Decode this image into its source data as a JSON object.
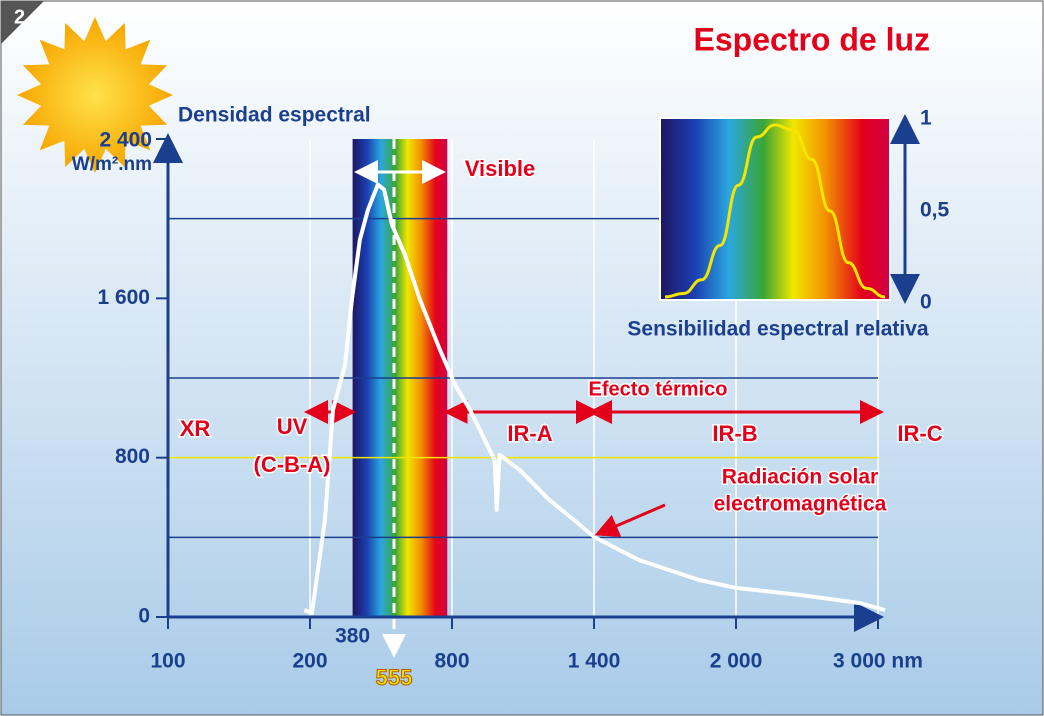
{
  "chart_data": {
    "type": "line",
    "title": "Espectro de luz",
    "badge": "2",
    "y_label": "Densidad espectral",
    "y_unit": "W/m².nm",
    "ylim": [
      0,
      2400
    ],
    "yticks": [
      0,
      800,
      {
        "value": 1600,
        "label": "1 600"
      },
      {
        "value": 2400,
        "label": "2 400"
      }
    ],
    "xticks": [
      100,
      200,
      800,
      {
        "value": 1400,
        "label": "1 400"
      },
      {
        "value": 2000,
        "label": "2 000"
      },
      {
        "value": 3000,
        "label": "3 000 nm"
      }
    ],
    "markers": [
      380,
      555
    ],
    "visible_band": [
      380,
      780
    ],
    "reference_lines": [
      {
        "value": 2000,
        "color": "#1b3f8f"
      },
      {
        "value": 1200,
        "color": "#1b3f8f"
      },
      {
        "value": 800,
        "color": "#f2e600"
      },
      {
        "value": 400,
        "color": "#1b3f8f"
      }
    ],
    "series": [
      {
        "color": "#ffffff",
        "x": [
          196,
          208,
          263,
          297,
          348,
          377,
          411,
          445,
          487,
          513,
          546,
          601,
          665,
          749,
          813,
          876,
          959,
          980,
          989,
          1001,
          1085,
          1211,
          1316,
          1400,
          1590,
          1844,
          2000,
          2447,
          2872,
          3050
        ],
        "values": [
          35,
          20,
          487,
          1040,
          1266,
          1593,
          1895,
          2045,
          2171,
          2146,
          1970,
          1819,
          1593,
          1342,
          1166,
          1040,
          839,
          789,
          538,
          814,
          739,
          588,
          487,
          402,
          286,
          186,
          146,
          111,
          70,
          35
        ]
      }
    ],
    "range_arrows": [
      [
        411,
        749
      ],
      [
        200,
        370
      ],
      [
        790,
        1400
      ],
      [
        1400,
        3000
      ]
    ],
    "annotations": {
      "visible": "Visible",
      "xr": "XR",
      "uv": "UV",
      "uv_sub": "(C-B-A)",
      "ira": "IR-A",
      "irb": "IR-B",
      "irc": "IR-C",
      "thermal": "Efecto térmico",
      "solar_1": "Radiación solar",
      "solar_2": "electromagnética"
    },
    "inset": {
      "title": "Sensibilidad espectral relativa",
      "color": "#f5e600",
      "ylim": [
        0,
        1
      ],
      "yticks": [
        0,
        {
          "value": 0.5,
          "label": "0,5"
        },
        1
      ],
      "values": [
        0,
        0.02,
        0.1,
        0.3,
        0.65,
        0.93,
        1,
        0.97,
        0.8,
        0.5,
        0.2,
        0.05,
        0
      ]
    }
  }
}
